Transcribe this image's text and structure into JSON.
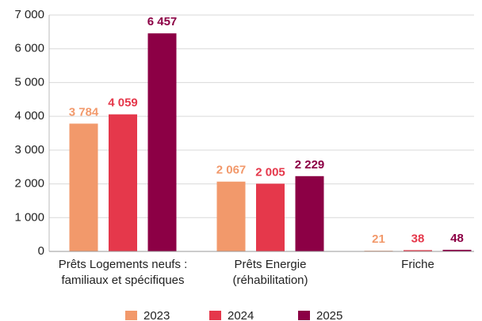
{
  "chart_data": {
    "type": "bar",
    "categories": [
      "Prêts Logements neufs :\nfamiliaux et spécifiques",
      "Prêts Energie\n(réhabilitation)",
      "Friche"
    ],
    "series": [
      {
        "name": "2023",
        "color": "#f2996b",
        "values": [
          3784,
          2067,
          21
        ],
        "value_labels": [
          "3 784",
          "2 067",
          "21"
        ]
      },
      {
        "name": "2024",
        "color": "#e5384b",
        "values": [
          4059,
          2005,
          38
        ],
        "value_labels": [
          "4 059",
          "2 005",
          "38"
        ]
      },
      {
        "name": "2025",
        "color": "#8c0045",
        "values": [
          6457,
          2229,
          48
        ],
        "value_labels": [
          "6 457",
          "2 229",
          "48"
        ]
      }
    ],
    "ylim": [
      0,
      7000
    ],
    "yticks": [
      0,
      {
        "value": 1000,
        "label": "1 000"
      },
      {
        "value": 2000,
        "label": "2 000"
      },
      {
        "value": 3000,
        "label": "3 000"
      },
      {
        "value": 4000,
        "label": "4 000"
      },
      {
        "value": 5000,
        "label": "5 000"
      },
      {
        "value": 6000,
        "label": "6 000"
      },
      {
        "value": 7000,
        "label": "7 000"
      }
    ],
    "grid": true,
    "legend": "bottom"
  }
}
